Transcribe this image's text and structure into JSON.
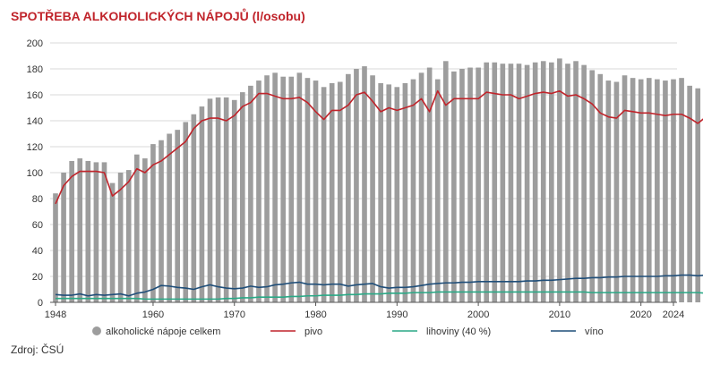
{
  "chart_data": {
    "type": "bar",
    "title": "SPOTŘEBA ALKOHOLICKÝCH NÁPOJŮ (l/osobu)",
    "source": "Zdroj: ČSÚ",
    "x_start": 1948,
    "x_end": 2024,
    "x_ticks": [
      "1948",
      "1960",
      "1970",
      "1980",
      "1990",
      "2000",
      "2010",
      "2020",
      "2024"
    ],
    "y_ticks": [
      "0",
      "20",
      "40",
      "60",
      "80",
      "100",
      "120",
      "140",
      "160",
      "180",
      "200"
    ],
    "ylim": [
      0,
      200
    ],
    "grid": true,
    "legend_position": "bottom",
    "series": [
      {
        "name": "alkoholické nápoje celkem",
        "kind": "bar",
        "color": "#9d9d9d",
        "values": [
          84,
          100,
          109,
          111,
          109,
          108,
          108,
          92,
          100,
          102,
          114,
          111,
          122,
          125,
          130,
          133,
          139,
          145,
          151,
          157,
          158,
          158,
          156,
          162,
          167,
          171,
          175,
          177,
          174,
          174,
          177,
          173,
          171,
          166,
          169,
          170,
          176,
          180,
          182,
          175,
          169,
          168,
          166,
          169,
          172,
          177,
          181,
          172,
          186,
          178,
          180,
          181,
          181,
          185,
          185,
          184,
          184,
          184,
          183,
          185,
          186,
          185,
          188,
          184,
          186,
          183,
          179,
          176,
          171,
          170,
          175,
          173,
          172,
          173,
          172,
          171,
          172,
          173,
          167,
          165,
          169,
          160,
          156
        ]
      },
      {
        "name": "pivo",
        "kind": "line",
        "color": "#c0242b",
        "values": [
          76,
          90,
          97,
          101,
          101,
          101,
          100,
          82,
          87,
          93,
          103,
          100,
          106,
          109,
          114,
          119,
          124,
          134,
          140,
          142,
          142,
          140,
          144,
          151,
          154,
          161,
          161,
          159,
          157,
          157,
          158,
          154,
          147,
          141,
          148,
          148,
          152,
          160,
          162,
          155,
          147,
          150,
          148,
          150,
          152,
          157,
          147,
          163,
          152,
          157,
          157,
          157,
          157,
          162,
          161,
          160,
          160,
          157,
          159,
          161,
          162,
          161,
          163,
          159,
          160,
          157,
          153,
          146,
          143,
          142,
          148,
          147,
          146,
          146,
          145,
          144,
          145,
          145,
          142,
          138,
          143,
          134,
          131
        ]
      },
      {
        "name": "lihoviny (40 %)",
        "kind": "line",
        "color": "#2aa986",
        "values": [
          3,
          3,
          3,
          3,
          3,
          3,
          3,
          3,
          3,
          3,
          3,
          2.5,
          2.5,
          2.5,
          2.5,
          2.5,
          2.5,
          2.5,
          2.5,
          2.5,
          2.5,
          3,
          3,
          3.5,
          3.5,
          4,
          4,
          4,
          4,
          4.5,
          4.5,
          5,
          5,
          5.5,
          5.5,
          5.5,
          6,
          6,
          6.5,
          6.5,
          6.5,
          7,
          7,
          7,
          7.5,
          7.5,
          7.5,
          8,
          8,
          8,
          8,
          8,
          8,
          8,
          8,
          8,
          8,
          8,
          8,
          8,
          8,
          8,
          8,
          8,
          8,
          8,
          7.5,
          7.5,
          7.5,
          7.5,
          7.5,
          7.5,
          7.5,
          7.5,
          7.5,
          7.5,
          7.5,
          7.5,
          7.5,
          7.5,
          7,
          7,
          6.5
        ]
      },
      {
        "name": "víno",
        "kind": "line",
        "color": "#1f4e79",
        "values": [
          6,
          5.5,
          5.5,
          6.5,
          5,
          6,
          5.5,
          6,
          6.5,
          5,
          7,
          8,
          10,
          13,
          12.5,
          11.5,
          11,
          10,
          12,
          13.5,
          12,
          11,
          10.5,
          11,
          12.5,
          11.5,
          12,
          13.5,
          14,
          15,
          15.5,
          14,
          14,
          13.5,
          14,
          14,
          12.5,
          13.5,
          14,
          14.5,
          12,
          11,
          11.5,
          11.5,
          12,
          13,
          14,
          14.5,
          15,
          15,
          15.5,
          15.5,
          16,
          16,
          16,
          16,
          16,
          16,
          16.5,
          16.5,
          17,
          17,
          17.5,
          18,
          18.5,
          18.5,
          19,
          19,
          19.5,
          19.5,
          20,
          20,
          20,
          20,
          20,
          20.5,
          20.5,
          21,
          21,
          20.5,
          21,
          20.5,
          19.5
        ]
      }
    ]
  }
}
